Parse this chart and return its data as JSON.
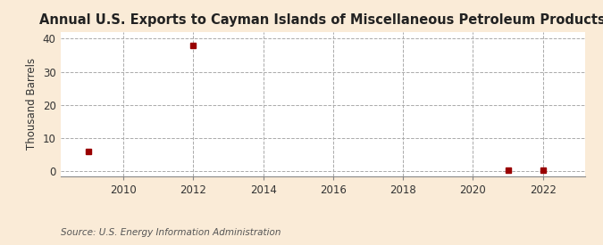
{
  "title": "Annual U.S. Exports to Cayman Islands of Miscellaneous Petroleum Products",
  "ylabel": "Thousand Barrels",
  "source": "Source: U.S. Energy Information Administration",
  "background_color": "#faebd7",
  "plot_background_color": "#ffffff",
  "data_points": [
    {
      "year": 2009,
      "value": 6
    },
    {
      "year": 2012,
      "value": 38
    },
    {
      "year": 2021,
      "value": 0.5
    },
    {
      "year": 2022,
      "value": 0.5
    }
  ],
  "xlim": [
    2008.2,
    2023.2
  ],
  "ylim": [
    -1.5,
    42
  ],
  "yticks": [
    0,
    10,
    20,
    30,
    40
  ],
  "xticks": [
    2010,
    2012,
    2014,
    2016,
    2018,
    2020,
    2022
  ],
  "marker_color": "#990000",
  "marker_size": 4,
  "marker_style": "s",
  "grid_color": "#aaaaaa",
  "grid_style": "--",
  "title_fontsize": 10.5,
  "axis_fontsize": 8.5,
  "source_fontsize": 7.5
}
